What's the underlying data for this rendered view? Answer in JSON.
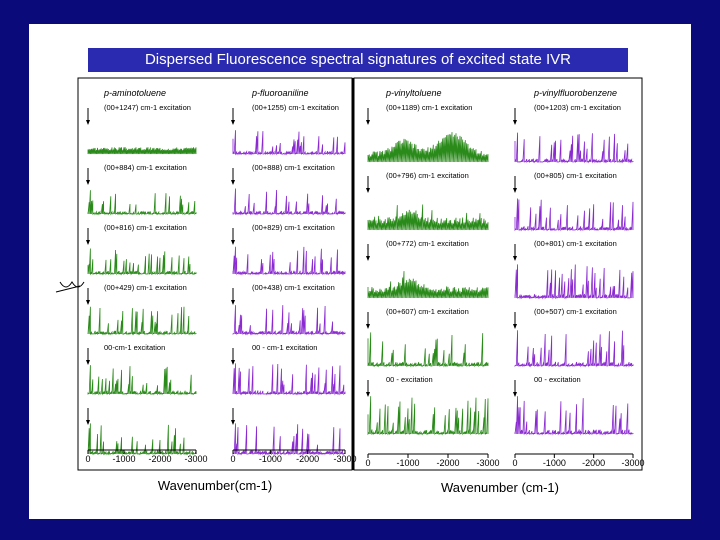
{
  "title": "Dispersed Fluorescence  spectral signatures of excited state IVR",
  "colors": {
    "background": "#0a0a7a",
    "title_bg": "#2a2ab0",
    "green": "#2a8a1a",
    "purple": "#8a2ad0"
  },
  "chart_data": [
    {
      "type": "line",
      "name_label": "p-aminotoluene",
      "color": "#2a8a1a",
      "xlim": [
        0,
        -3000
      ],
      "xticks": [
        "0",
        "-1000",
        "-2000",
        "-3000"
      ],
      "xlabel": "Wavenumber(cm-1)",
      "traces": [
        {
          "label": "(00+1247) cm-1 excitation",
          "profile": "broad",
          "level": 0.45
        },
        {
          "label": "(00+884) cm-1 excitation",
          "profile": "lines",
          "level": 0.7
        },
        {
          "label": "(00+816) cm-1 excitation",
          "profile": "lines",
          "level": 0.75
        },
        {
          "label": "(00+429) cm-1 excitation",
          "profile": "lines",
          "level": 0.8
        },
        {
          "label": "00-cm-1 excitation",
          "profile": "lines",
          "level": 0.85
        },
        {
          "label": "",
          "profile": "lines",
          "level": 0.9
        }
      ]
    },
    {
      "type": "line",
      "name_label": "p-fluoroaniline",
      "color": "#8a2ad0",
      "xlim": [
        0,
        -3000
      ],
      "xticks": [
        "0",
        "-1000",
        "-2000",
        "-3000"
      ],
      "xlabel": "",
      "traces": [
        {
          "label": "(00+1255) cm-1 excitation",
          "profile": "lines",
          "level": 0.7
        },
        {
          "label": "(00+888) cm-1 excitation",
          "profile": "lines",
          "level": 0.75
        },
        {
          "label": "(00+829) cm-1 excitation",
          "profile": "lines",
          "level": 0.8
        },
        {
          "label": "(00+438) cm-1 excitation",
          "profile": "lines",
          "level": 0.85
        },
        {
          "label": "00 - cm-1 excitation",
          "profile": "lines",
          "level": 0.9
        },
        {
          "label": "",
          "profile": "lines",
          "level": 0.9
        }
      ]
    },
    {
      "type": "line",
      "name_label": "p-vinyltoluene",
      "color": "#2a8a1a",
      "xlim": [
        0,
        -3000
      ],
      "xticks": [
        "0",
        "-1000",
        "-2000",
        "-3000"
      ],
      "xlabel": "Wavenumber (cm-1)",
      "traces": [
        {
          "label": "(00+1189) cm-1 excitation",
          "profile": "broad",
          "level": 0.85
        },
        {
          "label": "(00+796) cm-1 excitation",
          "profile": "mixed",
          "level": 0.75
        },
        {
          "label": "(00+772) cm-1 excitation",
          "profile": "mixed",
          "level": 0.7
        },
        {
          "label": "(00+607) cm-1 excitation",
          "profile": "lines",
          "level": 0.8
        },
        {
          "label": "00 - excitation",
          "profile": "lines",
          "level": 0.9
        }
      ]
    },
    {
      "type": "line",
      "name_label": "p-vinylfluorobenzene",
      "color": "#8a2ad0",
      "xlim": [
        0,
        -3000
      ],
      "xticks": [
        "0",
        "-1000",
        "-2000",
        "-3000"
      ],
      "xlabel": "",
      "traces": [
        {
          "label": "(00+1203) cm-1 excitation",
          "profile": "lines",
          "level": 0.7
        },
        {
          "label": "(00+805) cm-1 excitation",
          "profile": "lines",
          "level": 0.75
        },
        {
          "label": "(00+801) cm-1 excitation",
          "profile": "lines",
          "level": 0.8
        },
        {
          "label": "(00+507) cm-1 excitation",
          "profile": "lines",
          "level": 0.85
        },
        {
          "label": "00 - excitation",
          "profile": "lines",
          "level": 0.9
        }
      ]
    }
  ]
}
